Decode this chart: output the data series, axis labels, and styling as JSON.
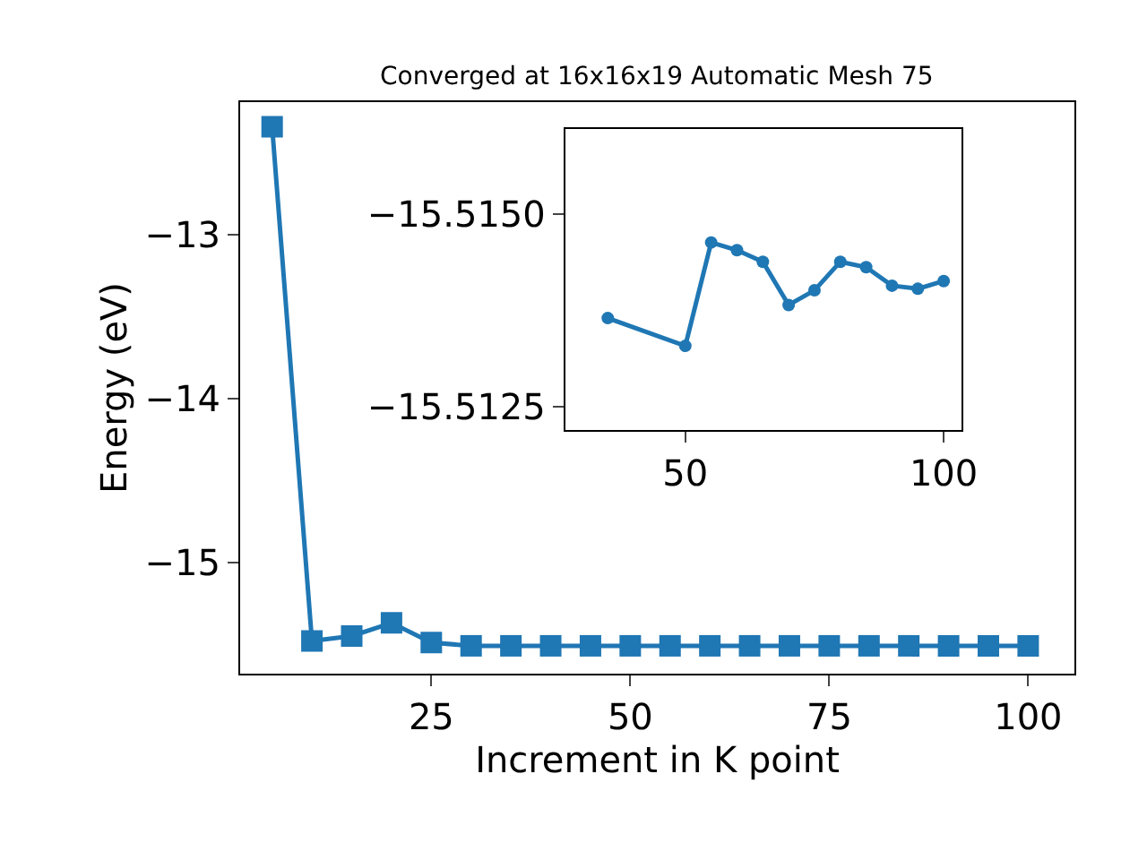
{
  "chart_data": [
    {
      "type": "line",
      "title": "Converged at 16x16x19 Automatic Mesh 75",
      "xlabel": "Increment in K point",
      "ylabel": "Energy (eV)",
      "x": [
        5,
        10,
        15,
        20,
        25,
        30,
        35,
        40,
        45,
        50,
        55,
        60,
        65,
        70,
        75,
        80,
        85,
        90,
        95,
        100
      ],
      "series": [
        {
          "color": "#1f77b4",
          "values": [
            -12.34,
            -15.48,
            -15.45,
            -15.37,
            -15.49,
            -15.51,
            -15.51,
            -15.51,
            -15.51,
            -15.51,
            -15.51,
            -15.51,
            -15.51,
            -15.51,
            -15.51,
            -15.51,
            -15.51,
            -15.51,
            -15.51,
            -15.51
          ]
        }
      ],
      "xlim": [
        1.0,
        105.8
      ],
      "xticks": [
        25,
        50,
        75,
        100
      ],
      "ylim": [
        -15.68,
        -12.19
      ],
      "yticks": [
        -13,
        -14,
        -15
      ],
      "marker": "square",
      "line_style": "solid"
    },
    {
      "type": "line",
      "x": [
        35,
        50,
        55,
        60,
        65,
        70,
        75,
        80,
        85,
        90,
        95,
        100
      ],
      "series": [
        {
          "color": "#1f77b4",
          "values": [
            -15.51365,
            -15.51329,
            -15.51463,
            -15.51453,
            -15.51438,
            -15.51382,
            -15.51401,
            -15.51438,
            -15.51431,
            -15.51407,
            -15.51403,
            -15.51413
          ]
        }
      ],
      "xlim": [
        26.8,
        103.4
      ],
      "xticks": [
        50,
        100
      ],
      "ylim": [
        -15.5122,
        -15.5161
      ],
      "yticks": [
        {
          "value": -15.515,
          "label": "−15.5150"
        },
        {
          "value": -15.5125,
          "label": "−15.5125"
        }
      ],
      "marker": "circle",
      "line_style": "solid"
    }
  ]
}
